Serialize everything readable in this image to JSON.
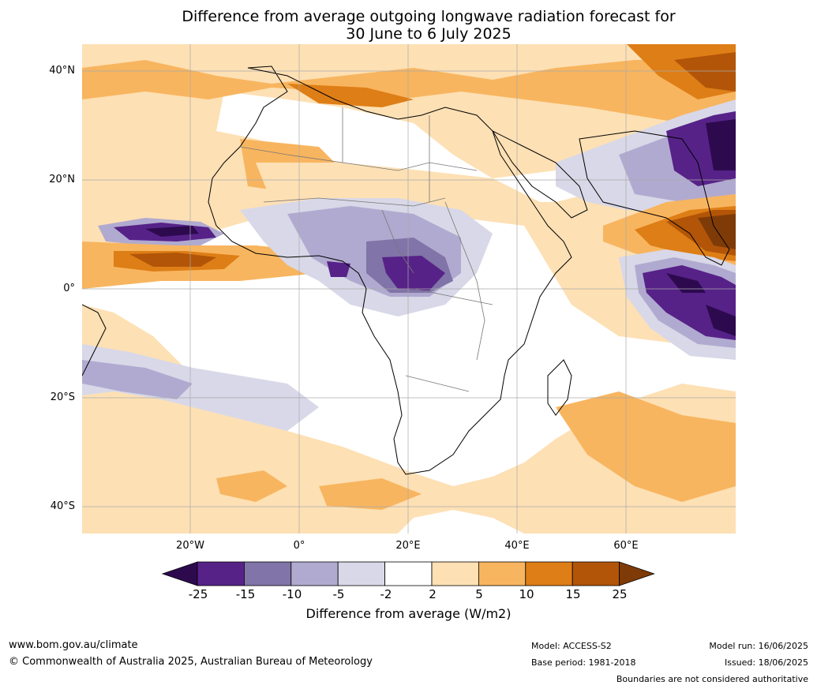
{
  "title_line1": "Difference from average outgoing longwave radiation forecast for",
  "title_line2": "30 June to 6 July 2025",
  "lat_labels": [
    "40°N",
    "20°N",
    "0°",
    "20°S",
    "40°S"
  ],
  "lon_labels": [
    "20°W",
    "0°",
    "20°E",
    "40°E",
    "60°E"
  ],
  "colorbar": {
    "ticks": [
      "-25",
      "-15",
      "-10",
      "-5",
      "-2",
      "2",
      "5",
      "10",
      "15",
      "25"
    ],
    "colors": [
      "#2d0a4e",
      "#562288",
      "#8174a8",
      "#b1aad0",
      "#d8d8e8",
      "#ffffff",
      "#fde0b4",
      "#f8b55f",
      "#de7e16",
      "#b25508",
      "#7f3b07"
    ],
    "label": "Difference from average (W/m2)"
  },
  "footer": {
    "website": "www.bom.gov.au/climate",
    "copyright": "© Commonwealth of Australia 2025, Australian Bureau of Meteorology",
    "model": "Model: ACCESS-S2",
    "base_period": "Base period: 1981-2018",
    "model_run": "Model run: 16/06/2025",
    "issued": "Issued: 18/06/2025",
    "boundaries_note": "Boundaries are not considered authoritative"
  }
}
